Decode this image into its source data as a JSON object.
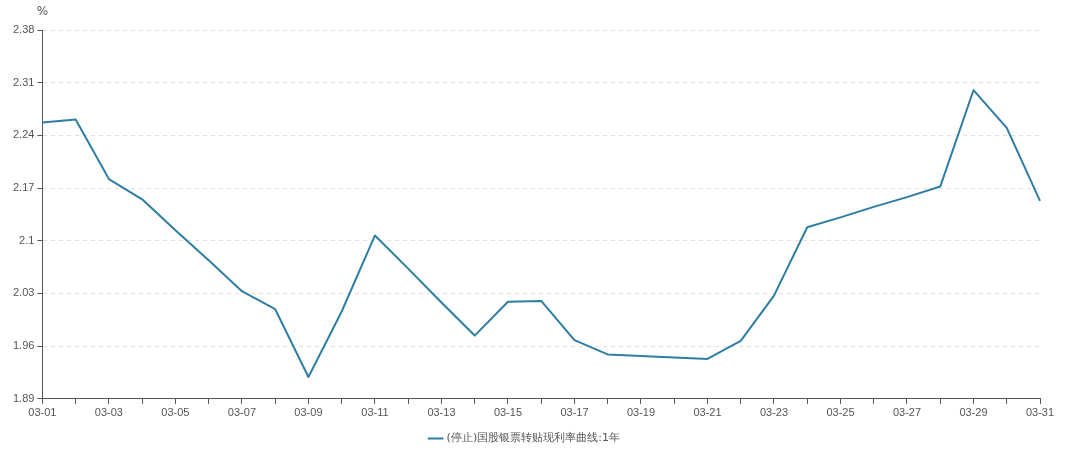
{
  "chart_data": {
    "type": "line",
    "ylabel": "%",
    "categories": [
      "03-01",
      null,
      "03-03",
      null,
      "03-05",
      null,
      "03-07",
      null,
      "03-09",
      null,
      "03-11",
      null,
      "03-13",
      null,
      "03-15",
      null,
      "03-17",
      null,
      "03-19",
      null,
      "03-21",
      null,
      "03-23",
      null,
      "03-25",
      null,
      "03-27",
      null,
      "03-29",
      null,
      "03-31"
    ],
    "series": [
      {
        "name": "(停止)国股银票转贴现利率曲线:1年",
        "color": "#2e7ea3",
        "values": [
          2.257,
          2.261,
          2.182,
          2.155,
          2.114,
          2.074,
          2.033,
          2.009,
          1.919,
          2.006,
          2.107,
          2.063,
          2.018,
          1.974,
          2.019,
          2.02,
          1.968,
          1.949,
          1.947,
          1.945,
          1.943,
          1.967,
          2.027,
          2.118,
          2.131,
          2.145,
          2.158,
          2.172,
          2.3,
          2.25,
          2.153
        ]
      }
    ],
    "ylim": [
      1.89,
      2.38
    ],
    "yticks": [
      1.89,
      1.96,
      2.03,
      {
        "value": 2.1,
        "label": "2.1"
      },
      2.17,
      2.24,
      2.31,
      2.38
    ],
    "grid": "y",
    "legend": "bottom",
    "marker": "none",
    "line_style": "solid"
  }
}
